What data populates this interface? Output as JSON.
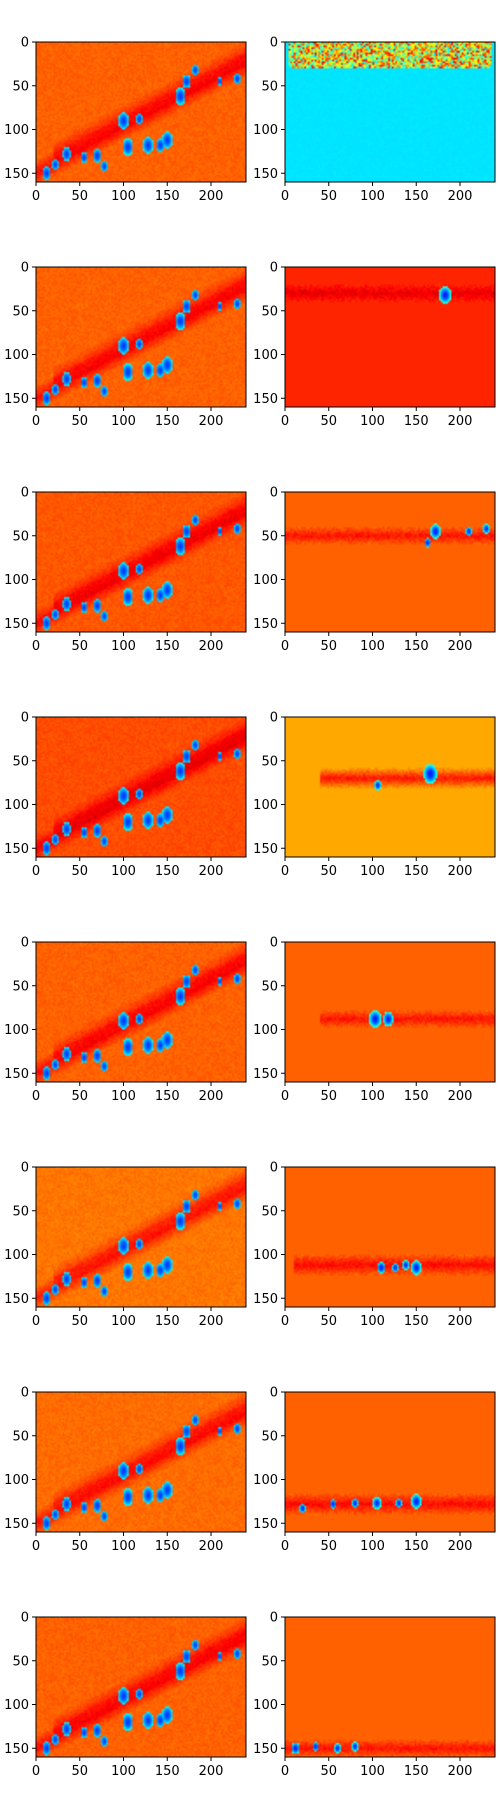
{
  "chart_data": {
    "type": "heatmap",
    "layout": {
      "rows": 8,
      "cols": 2
    },
    "colormap": "jet",
    "axes": {
      "xlim": [
        0,
        240
      ],
      "ylim": [
        0,
        160
      ],
      "y_inverted": true,
      "xticks": [
        0,
        50,
        100,
        150,
        200
      ],
      "xtick_labels": [
        "0",
        "50",
        "100",
        "150",
        "200"
      ],
      "yticks": [
        0,
        50,
        100,
        150
      ],
      "ytick_labels": [
        "0",
        "50",
        "100",
        "150"
      ],
      "grid": false
    },
    "panels": [
      {
        "row": 0,
        "col": 0,
        "kind": "diagonal-map",
        "background_value": 0.78
      },
      {
        "row": 0,
        "col": 1,
        "kind": "band-map",
        "background_value": 0.35,
        "band_center_y": 10,
        "band_halfwidth": 12,
        "band_xrange": [
          5,
          235
        ],
        "band_value": 0.58,
        "pattern": "noisy-band"
      },
      {
        "row": 1,
        "col": 0,
        "kind": "diagonal-map",
        "background_value": 0.78
      },
      {
        "row": 1,
        "col": 1,
        "kind": "band-map",
        "background_value": 0.84,
        "band_center_y": 30,
        "band_halfwidth": 10,
        "band_xrange": [
          0,
          240
        ],
        "band_value": 0.9,
        "hotspots": [
          {
            "x": 183,
            "y": 32,
            "r": 7
          }
        ]
      },
      {
        "row": 2,
        "col": 0,
        "kind": "diagonal-map",
        "background_value": 0.79
      },
      {
        "row": 2,
        "col": 1,
        "kind": "band-map",
        "background_value": 0.78,
        "band_center_y": 50,
        "band_halfwidth": 10,
        "band_xrange": [
          0,
          240
        ],
        "band_value": 0.86,
        "hotspots": [
          {
            "x": 172,
            "y": 45,
            "r": 6
          },
          {
            "x": 163,
            "y": 58,
            "r": 4
          },
          {
            "x": 210,
            "y": 45,
            "r": 4
          },
          {
            "x": 230,
            "y": 42,
            "r": 4
          }
        ]
      },
      {
        "row": 3,
        "col": 0,
        "kind": "diagonal-map",
        "background_value": 0.8
      },
      {
        "row": 3,
        "col": 1,
        "kind": "band-map",
        "background_value": 0.71,
        "band_center_y": 70,
        "band_halfwidth": 12,
        "band_xrange": [
          40,
          240
        ],
        "band_value": 0.86,
        "hotspots": [
          {
            "x": 166,
            "y": 65,
            "r": 8
          },
          {
            "x": 106,
            "y": 78,
            "r": 4
          }
        ]
      },
      {
        "row": 4,
        "col": 0,
        "kind": "diagonal-map",
        "background_value": 0.78
      },
      {
        "row": 4,
        "col": 1,
        "kind": "band-map",
        "background_value": 0.78,
        "band_center_y": 88,
        "band_halfwidth": 10,
        "band_xrange": [
          40,
          240
        ],
        "band_value": 0.86,
        "hotspots": [
          {
            "x": 103,
            "y": 88,
            "r": 7
          },
          {
            "x": 118,
            "y": 88,
            "r": 6
          }
        ]
      },
      {
        "row": 5,
        "col": 0,
        "kind": "diagonal-map",
        "background_value": 0.76
      },
      {
        "row": 5,
        "col": 1,
        "kind": "band-map",
        "background_value": 0.78,
        "band_center_y": 112,
        "band_halfwidth": 12,
        "band_xrange": [
          10,
          240
        ],
        "band_value": 0.87,
        "hotspots": [
          {
            "x": 110,
            "y": 115,
            "r": 5
          },
          {
            "x": 126,
            "y": 115,
            "r": 4
          },
          {
            "x": 138,
            "y": 112,
            "r": 4
          },
          {
            "x": 150,
            "y": 115,
            "r": 6
          }
        ]
      },
      {
        "row": 6,
        "col": 0,
        "kind": "diagonal-map",
        "background_value": 0.77
      },
      {
        "row": 6,
        "col": 1,
        "kind": "band-map",
        "background_value": 0.78,
        "band_center_y": 128,
        "band_halfwidth": 12,
        "band_xrange": [
          0,
          240
        ],
        "band_value": 0.87,
        "hotspots": [
          {
            "x": 20,
            "y": 133,
            "r": 4
          },
          {
            "x": 55,
            "y": 128,
            "r": 4
          },
          {
            "x": 80,
            "y": 127,
            "r": 4
          },
          {
            "x": 105,
            "y": 127,
            "r": 5
          },
          {
            "x": 130,
            "y": 127,
            "r": 4
          },
          {
            "x": 150,
            "y": 125,
            "r": 6
          }
        ]
      },
      {
        "row": 7,
        "col": 0,
        "kind": "diagonal-map",
        "background_value": 0.78
      },
      {
        "row": 7,
        "col": 1,
        "kind": "band-map",
        "background_value": 0.78,
        "band_center_y": 150,
        "band_halfwidth": 10,
        "band_xrange": [
          0,
          240
        ],
        "band_value": 0.86,
        "hotspots": [
          {
            "x": 12,
            "y": 150,
            "r": 5
          },
          {
            "x": 35,
            "y": 148,
            "r": 4
          },
          {
            "x": 60,
            "y": 150,
            "r": 4
          },
          {
            "x": 80,
            "y": 148,
            "r": 4
          }
        ]
      }
    ]
  }
}
